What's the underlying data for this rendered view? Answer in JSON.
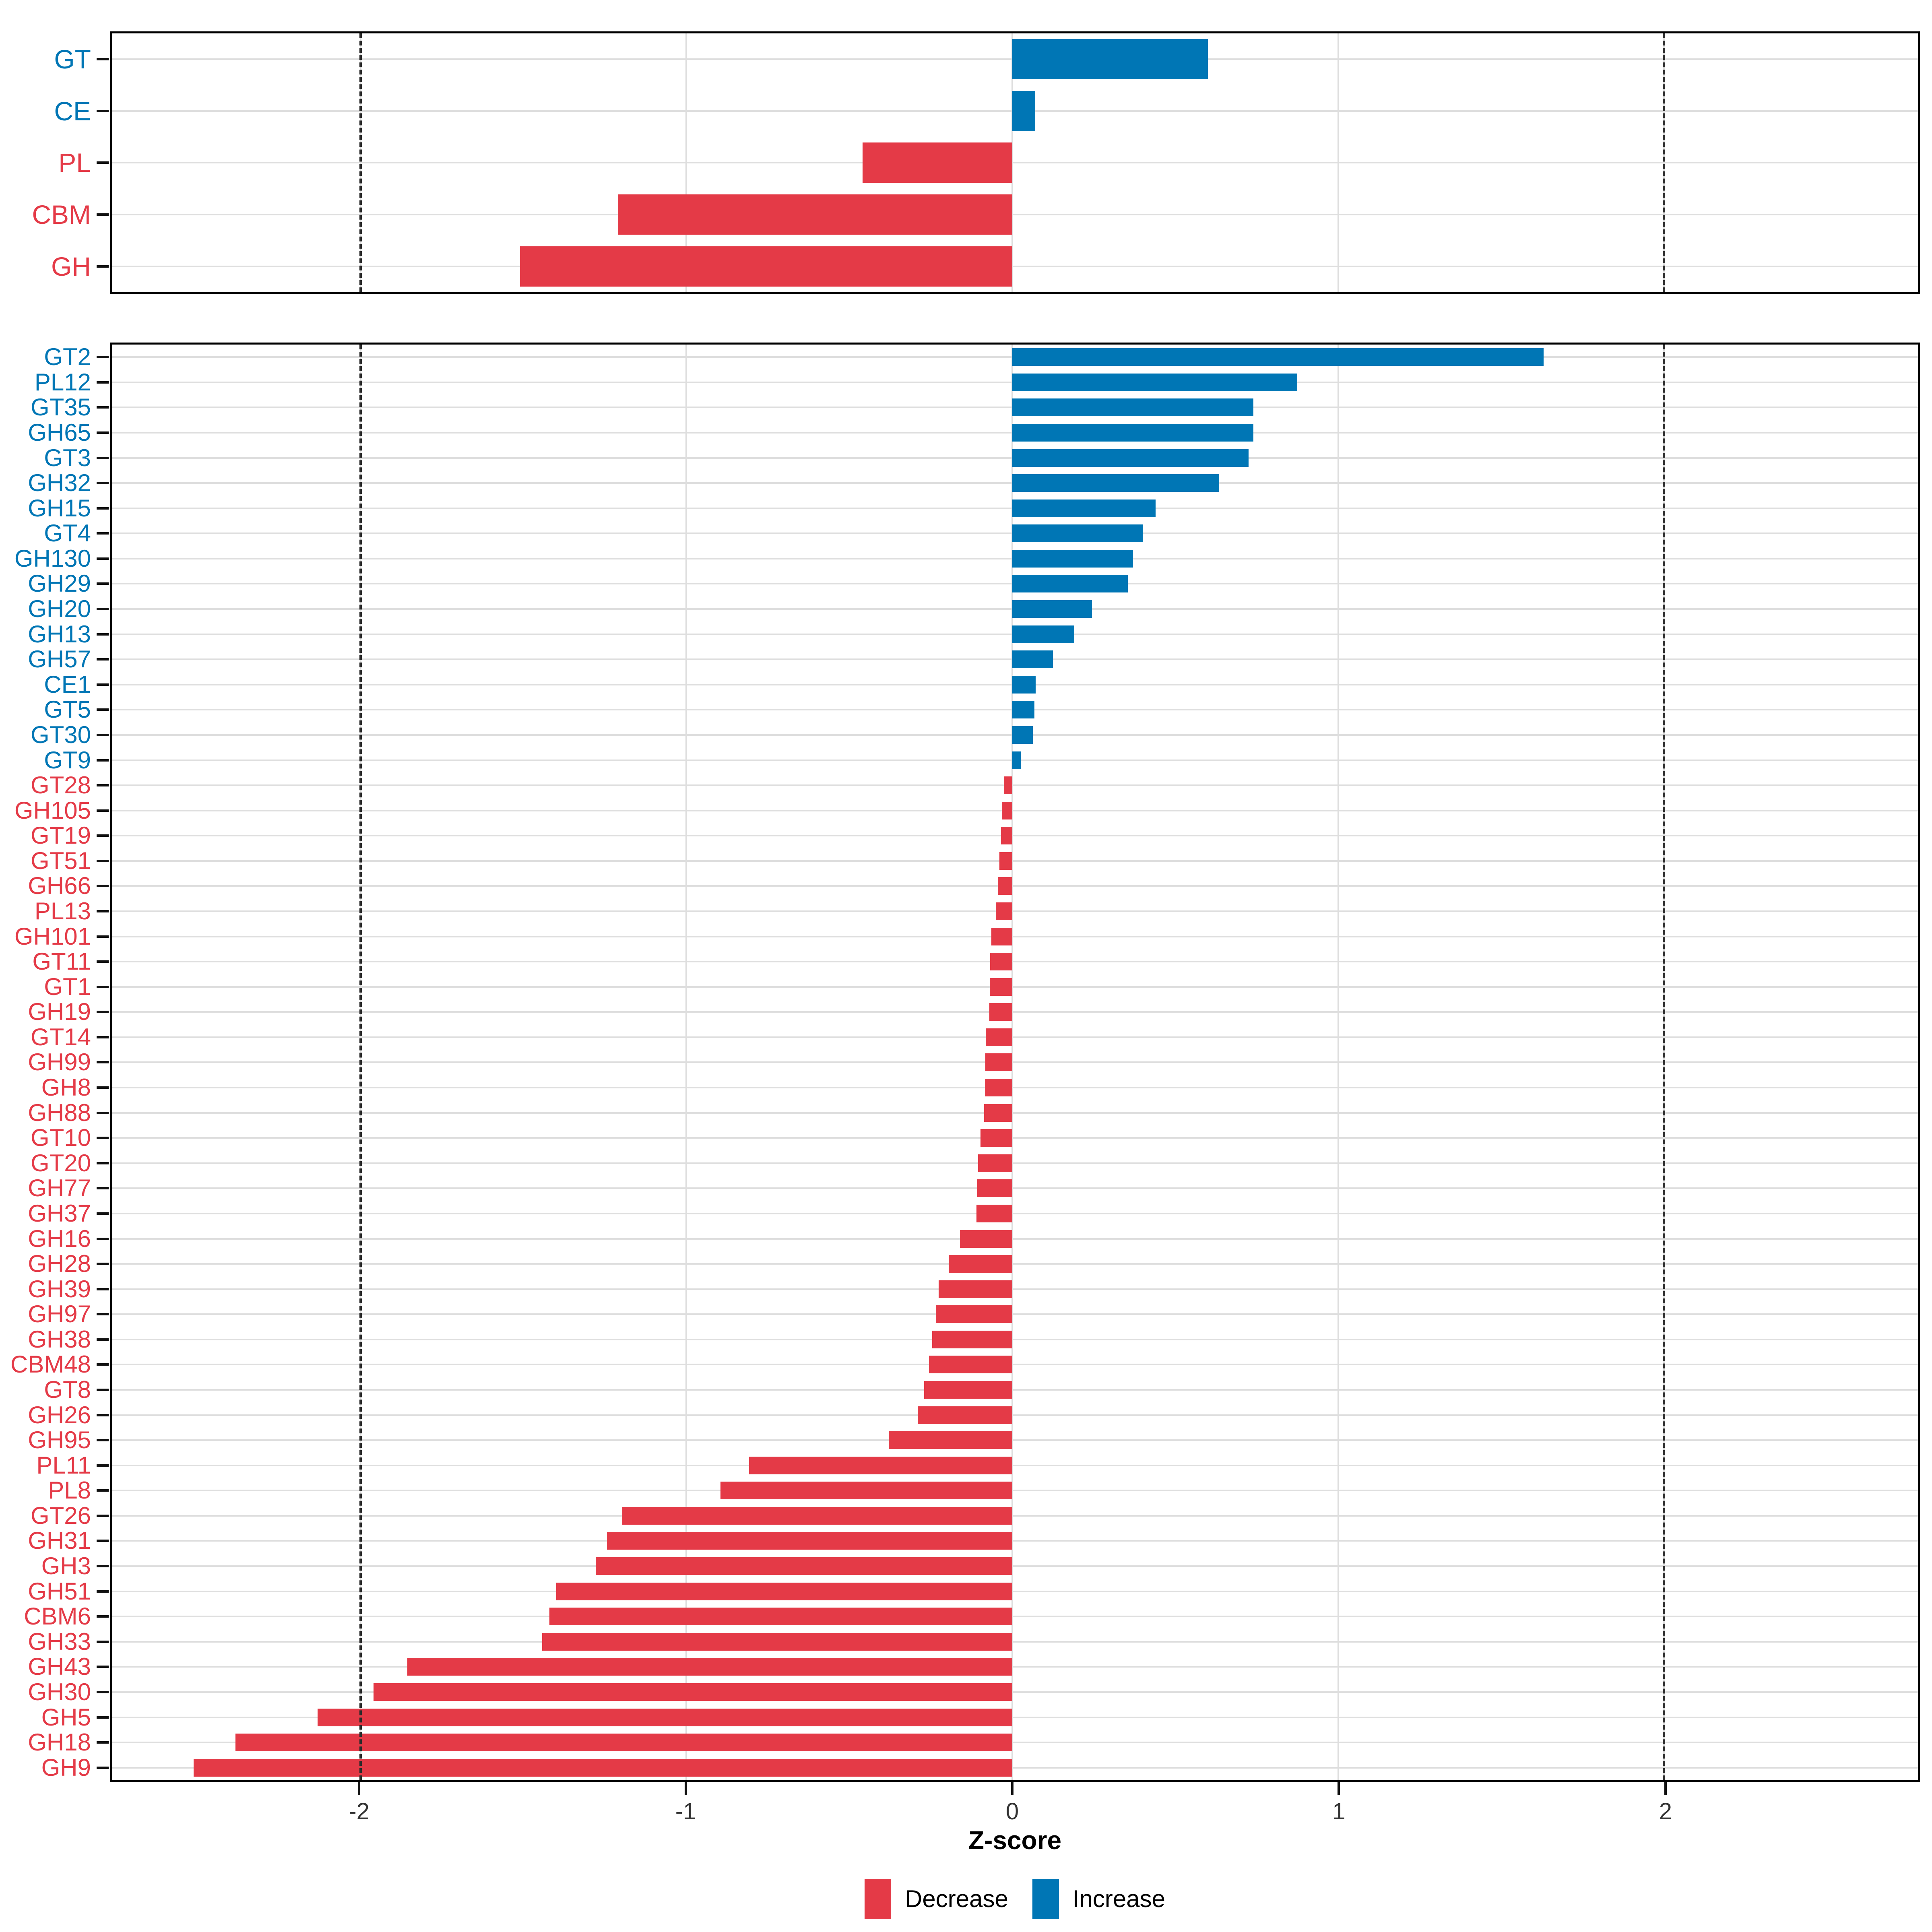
{
  "axis": {
    "xmin": -2.763,
    "xmax": 2.779,
    "tick_values": [
      -2,
      -1,
      0,
      1,
      2
    ],
    "tick_labels": [
      "-2",
      "-1",
      "0",
      "1",
      "2"
    ],
    "dashed_values": [
      -2,
      2
    ],
    "title": "Z-score",
    "grid": "on"
  },
  "colors": {
    "increase": "#0076B5",
    "decrease": "#E43A47",
    "grid": "#DEDEDE",
    "dashed_line": "#2B2B2B",
    "axis_text": "#333333",
    "panel_border": "#000000"
  },
  "legend": {
    "position": "bottom",
    "items": [
      {
        "label": "Decrease",
        "key": "decrease"
      },
      {
        "label": "Increase",
        "key": "increase"
      }
    ]
  },
  "chart_data": [
    {
      "type": "bar",
      "orientation": "horizontal",
      "panel": "category-summary",
      "xlabel": "Z-score",
      "categories": [
        "GT",
        "CE",
        "PL",
        "CBM",
        "GH"
      ],
      "values": [
        0.6,
        0.07,
        -0.46,
        -1.21,
        -1.51
      ]
    },
    {
      "type": "bar",
      "orientation": "horizontal",
      "panel": "cazyme-families",
      "xlabel": "Z-score",
      "categories": [
        "GT2",
        "PL12",
        "GT35",
        "GH65",
        "GT3",
        "GH32",
        "GH15",
        "GT4",
        "GH130",
        "GH29",
        "GH20",
        "GH13",
        "GH57",
        "CE1",
        "GT5",
        "GT30",
        "GT9",
        "GT28",
        "GH105",
        "GT19",
        "GT51",
        "GH66",
        "PL13",
        "GH101",
        "GT11",
        "GT1",
        "GH19",
        "GT14",
        "GH99",
        "GH8",
        "GH88",
        "GT10",
        "GT20",
        "GH77",
        "GH37",
        "GH16",
        "GH28",
        "GH39",
        "GH97",
        "GH38",
        "CBM48",
        "GT8",
        "GH26",
        "GH95",
        "PL11",
        "PL8",
        "GT26",
        "GH31",
        "GH3",
        "GH51",
        "CBM6",
        "GH33",
        "GH43",
        "GH30",
        "GH5",
        "GH18",
        "GH9"
      ],
      "values": [
        1.63,
        0.875,
        0.74,
        0.74,
        0.725,
        0.635,
        0.44,
        0.4,
        0.37,
        0.355,
        0.245,
        0.19,
        0.125,
        0.072,
        0.068,
        0.063,
        0.026,
        -0.026,
        -0.032,
        -0.035,
        -0.04,
        -0.044,
        -0.051,
        -0.064,
        -0.068,
        -0.069,
        -0.071,
        -0.082,
        -0.083,
        -0.084,
        -0.086,
        -0.098,
        -0.105,
        -0.107,
        -0.11,
        -0.161,
        -0.195,
        -0.226,
        -0.235,
        -0.246,
        -0.256,
        -0.27,
        -0.29,
        -0.379,
        -0.808,
        -0.895,
        -1.198,
        -1.244,
        -1.278,
        -1.4,
        -1.421,
        -1.443,
        -1.856,
        -1.96,
        -2.132,
        -2.384,
        -2.512
      ]
    }
  ]
}
